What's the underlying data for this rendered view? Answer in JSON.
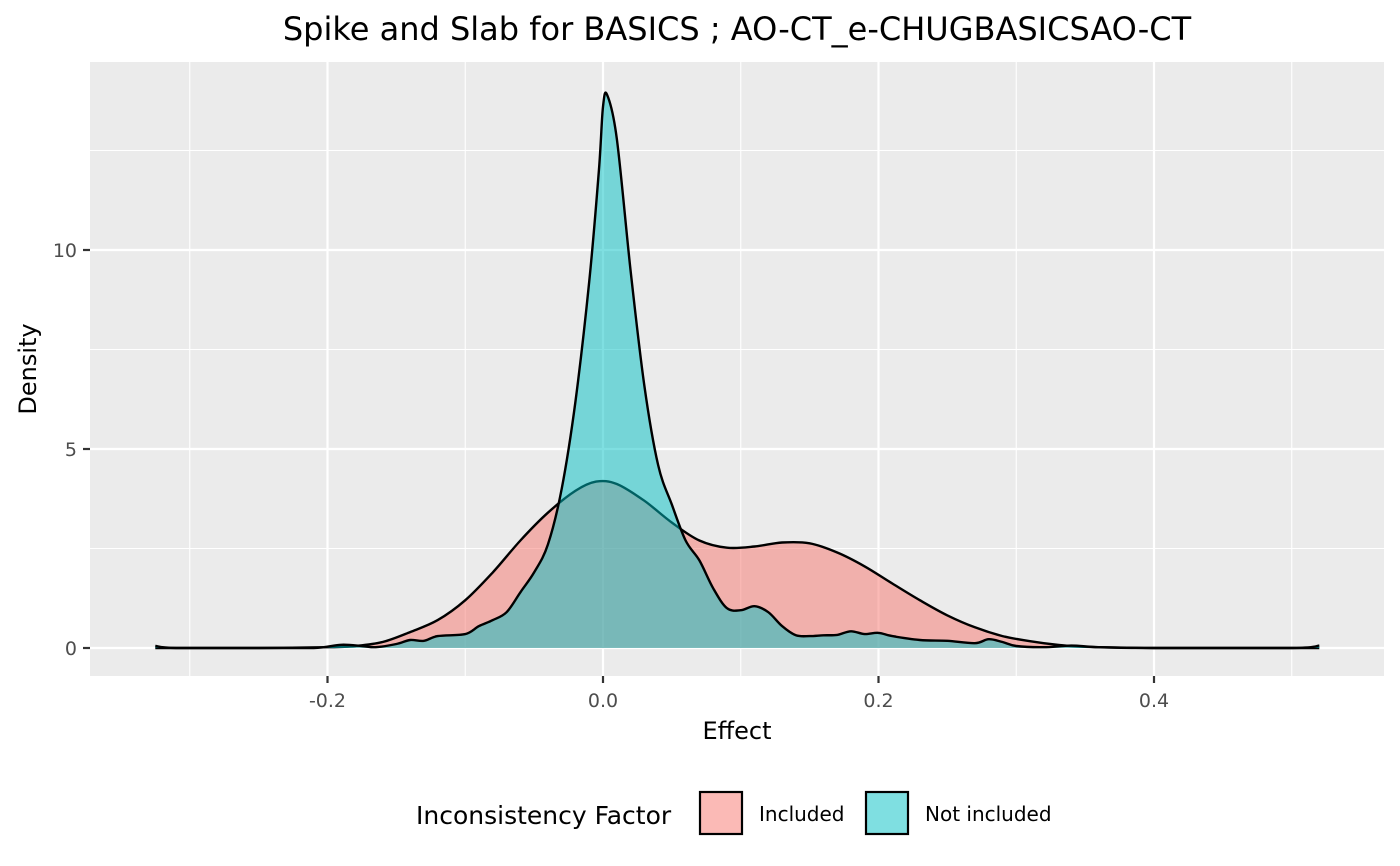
{
  "chart_data": {
    "type": "area",
    "title": "Spike and Slab for BASICS ; AO-CT_e-CHUGBASICSAO-CT",
    "xlabel": "Effect",
    "ylabel": "Density",
    "xlim": [
      -0.33,
      0.52
    ],
    "ylim": [
      0,
      14
    ],
    "x_ticks": [
      -0.2,
      0.0,
      0.2,
      0.4
    ],
    "x_tick_labels": [
      "-0.2",
      "0.0",
      "0.2",
      "0.4"
    ],
    "y_ticks": [
      0,
      5,
      10
    ],
    "y_tick_labels": [
      "0",
      "5",
      "10"
    ],
    "grid": true,
    "legend": {
      "title": "Inconsistency Factor",
      "placement": "bottom",
      "entries": [
        "Included",
        "Not included"
      ]
    },
    "series": [
      {
        "name": "Included",
        "color": "#F8766D",
        "points": [
          [
            -0.325,
            0
          ],
          [
            -0.3,
            0
          ],
          [
            -0.25,
            0
          ],
          [
            -0.2,
            0.02
          ],
          [
            -0.18,
            0.05
          ],
          [
            -0.16,
            0.15
          ],
          [
            -0.14,
            0.4
          ],
          [
            -0.12,
            0.7
          ],
          [
            -0.1,
            1.2
          ],
          [
            -0.08,
            1.9
          ],
          [
            -0.06,
            2.7
          ],
          [
            -0.04,
            3.4
          ],
          [
            -0.02,
            3.95
          ],
          [
            -0.005,
            4.18
          ],
          [
            0.01,
            4.12
          ],
          [
            0.03,
            3.7
          ],
          [
            0.05,
            3.15
          ],
          [
            0.07,
            2.7
          ],
          [
            0.09,
            2.52
          ],
          [
            0.11,
            2.55
          ],
          [
            0.13,
            2.65
          ],
          [
            0.15,
            2.63
          ],
          [
            0.17,
            2.4
          ],
          [
            0.19,
            2.05
          ],
          [
            0.21,
            1.62
          ],
          [
            0.23,
            1.2
          ],
          [
            0.25,
            0.82
          ],
          [
            0.27,
            0.52
          ],
          [
            0.29,
            0.3
          ],
          [
            0.31,
            0.17
          ],
          [
            0.33,
            0.08
          ],
          [
            0.35,
            0.03
          ],
          [
            0.4,
            0.0
          ],
          [
            0.45,
            0
          ],
          [
            0.52,
            0
          ]
        ]
      },
      {
        "name": "Not included",
        "color": "#00BFC4",
        "points": [
          [
            -0.325,
            0.05
          ],
          [
            -0.31,
            0
          ],
          [
            -0.25,
            0
          ],
          [
            -0.21,
            0
          ],
          [
            -0.19,
            0.08
          ],
          [
            -0.175,
            0.05
          ],
          [
            -0.165,
            0.02
          ],
          [
            -0.15,
            0.1
          ],
          [
            -0.14,
            0.2
          ],
          [
            -0.13,
            0.18
          ],
          [
            -0.12,
            0.3
          ],
          [
            -0.1,
            0.35
          ],
          [
            -0.09,
            0.55
          ],
          [
            -0.08,
            0.7
          ],
          [
            -0.07,
            0.9
          ],
          [
            -0.06,
            1.4
          ],
          [
            -0.05,
            1.9
          ],
          [
            -0.04,
            2.6
          ],
          [
            -0.03,
            4.0
          ],
          [
            -0.02,
            6.2
          ],
          [
            -0.01,
            9.2
          ],
          [
            -0.003,
            12.0
          ],
          [
            0.0,
            13.6
          ],
          [
            0.003,
            13.9
          ],
          [
            0.01,
            12.8
          ],
          [
            0.02,
            9.5
          ],
          [
            0.03,
            6.6
          ],
          [
            0.04,
            4.6
          ],
          [
            0.05,
            3.6
          ],
          [
            0.06,
            2.7
          ],
          [
            0.07,
            2.2
          ],
          [
            0.08,
            1.5
          ],
          [
            0.09,
            1.0
          ],
          [
            0.1,
            0.95
          ],
          [
            0.11,
            1.05
          ],
          [
            0.12,
            0.9
          ],
          [
            0.13,
            0.55
          ],
          [
            0.14,
            0.32
          ],
          [
            0.15,
            0.3
          ],
          [
            0.16,
            0.32
          ],
          [
            0.17,
            0.33
          ],
          [
            0.18,
            0.42
          ],
          [
            0.19,
            0.35
          ],
          [
            0.2,
            0.38
          ],
          [
            0.21,
            0.3
          ],
          [
            0.23,
            0.2
          ],
          [
            0.25,
            0.18
          ],
          [
            0.27,
            0.12
          ],
          [
            0.28,
            0.22
          ],
          [
            0.29,
            0.15
          ],
          [
            0.3,
            0.05
          ],
          [
            0.32,
            0.02
          ],
          [
            0.34,
            0.06
          ],
          [
            0.36,
            0.02
          ],
          [
            0.4,
            0
          ],
          [
            0.5,
            0
          ],
          [
            0.52,
            0.06
          ]
        ]
      }
    ]
  }
}
